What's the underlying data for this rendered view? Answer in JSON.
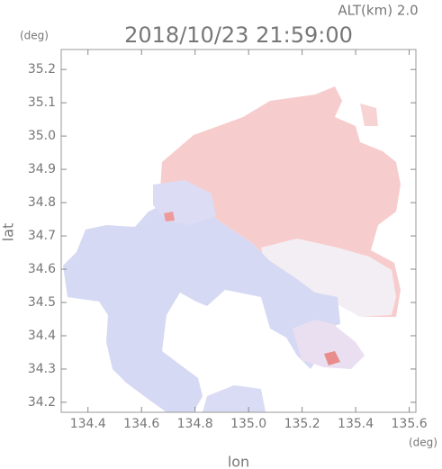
{
  "chart_data": {
    "type": "map",
    "title": "2018/10/23 21:59:00",
    "annotation": "ALT(km) 2.0",
    "y_unit": "(deg)",
    "x_unit": "(deg)",
    "x_label": "lon",
    "y_label": "lat",
    "xlim": [
      134.3,
      135.625
    ],
    "ylim": [
      34.17,
      35.26
    ],
    "xticks": [
      134.4,
      134.6,
      134.8,
      {
        "value": 135,
        "label": "135.0"
      },
      135.2,
      135.4,
      135.6
    ],
    "yticks": [
      34.2,
      34.3,
      34.4,
      34.5,
      34.6,
      34.7,
      34.8,
      34.9,
      {
        "value": 35,
        "label": "35.0"
      },
      35.1,
      35.2
    ]
  }
}
